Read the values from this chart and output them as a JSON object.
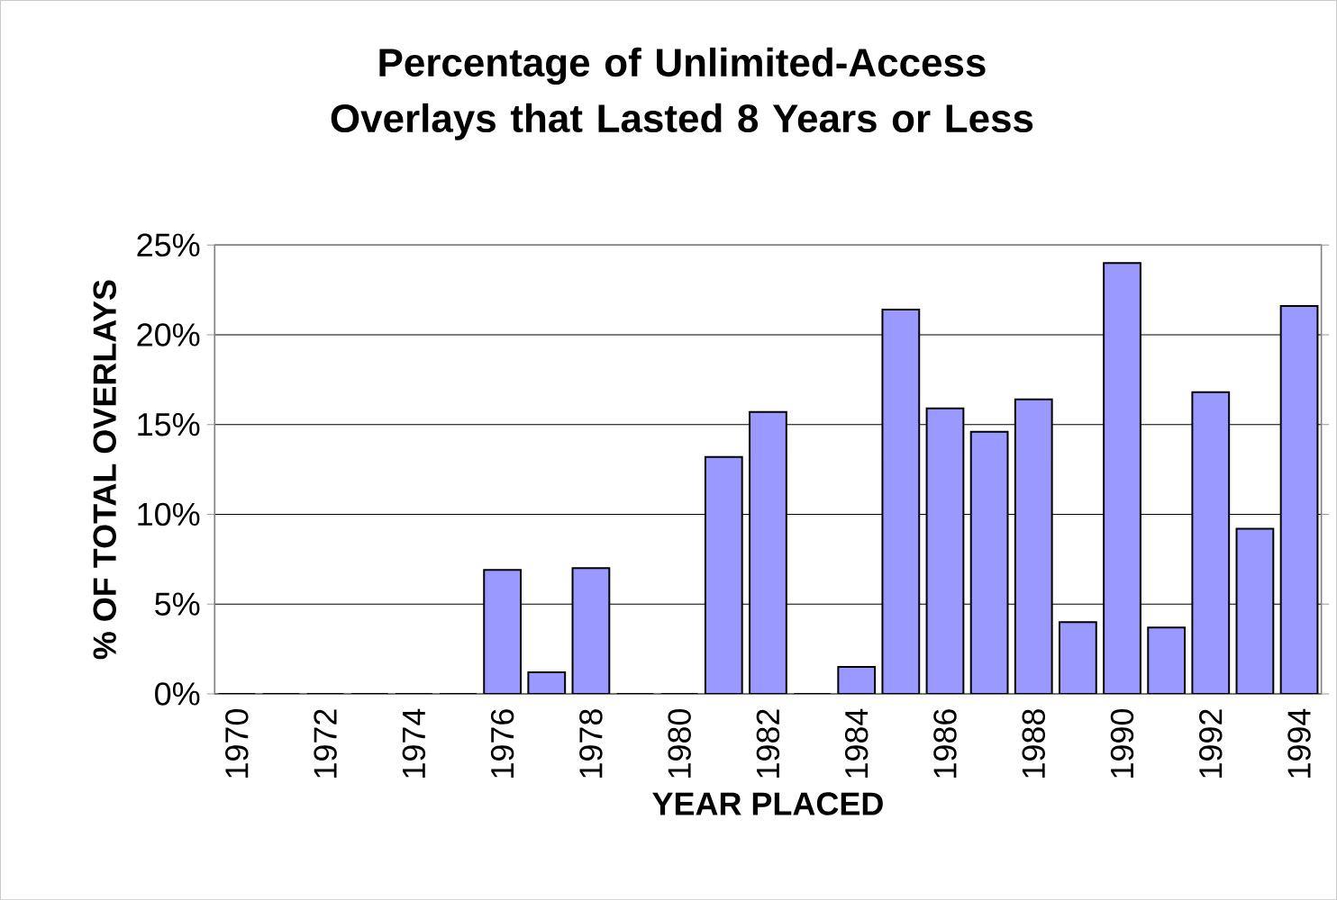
{
  "chart_data": {
    "type": "bar",
    "title": "Percentage of Unlimited-Access Overlays that Lasted 8 Years or Less",
    "xlabel": "YEAR PLACED",
    "ylabel": "% OF TOTAL OVERLAYS",
    "categories": [
      "1970",
      null,
      "1972",
      null,
      "1974",
      null,
      "1976",
      null,
      "1978",
      null,
      "1980",
      null,
      "1982",
      null,
      "1984",
      null,
      "1986",
      null,
      "1988",
      null,
      "1990",
      null,
      "1992",
      null,
      "1994"
    ],
    "values": [
      0,
      0,
      0,
      0,
      0,
      0,
      6.9,
      1.2,
      7.0,
      0,
      0,
      13.2,
      15.7,
      0,
      1.5,
      21.4,
      15.9,
      14.6,
      16.4,
      4.0,
      24.0,
      3.7,
      16.8,
      9.2,
      21.6
    ],
    "color": "#9999ff",
    "ylim": [
      0,
      25
    ],
    "yticks": [
      {
        "value": 0,
        "label": "0%"
      },
      {
        "value": 5,
        "label": "5%"
      },
      {
        "value": 10,
        "label": "10%"
      },
      {
        "value": 15,
        "label": "15%"
      },
      {
        "value": 20,
        "label": "20%"
      },
      {
        "value": 25,
        "label": "25%"
      }
    ],
    "grid": "y"
  }
}
